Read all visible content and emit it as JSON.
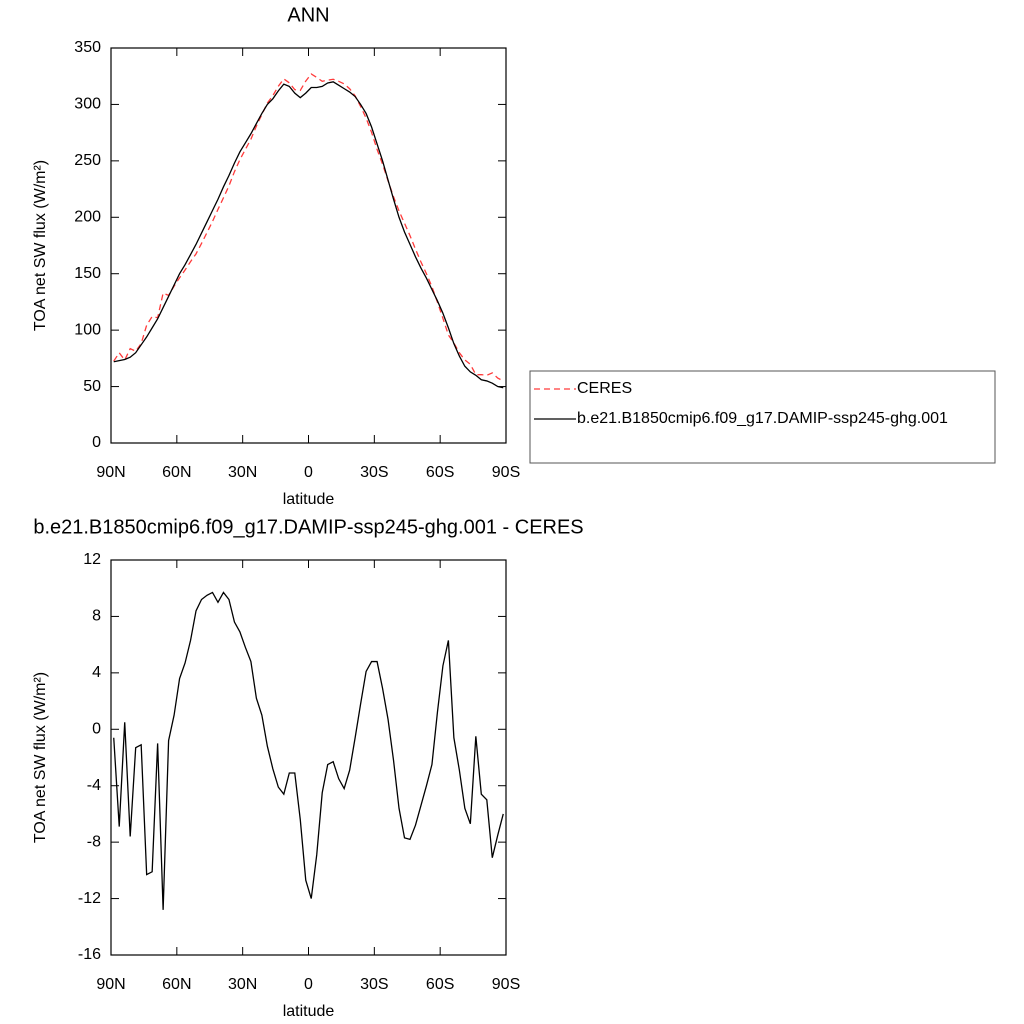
{
  "chart_data": [
    {
      "type": "line",
      "title": "ANN",
      "xlabel": "latitude",
      "ylabel": "TOA net SW flux (W/m²)",
      "xlim": [
        90,
        -90
      ],
      "xticks": [
        {
          "value": 90,
          "label": "90N"
        },
        {
          "value": 60,
          "label": "60N"
        },
        {
          "value": 30,
          "label": "30N"
        },
        0,
        {
          "value": -30,
          "label": "30S"
        },
        {
          "value": -60,
          "label": "60S"
        },
        {
          "value": -90,
          "label": "90S"
        }
      ],
      "ylim": [
        0,
        350
      ],
      "yticks": [
        0,
        50,
        100,
        150,
        200,
        250,
        300,
        350
      ],
      "legend": "right",
      "x": [
        88.75,
        86.25,
        83.75,
        81.25,
        78.75,
        76.25,
        73.75,
        71.25,
        68.75,
        66.25,
        63.75,
        61.25,
        58.75,
        56.25,
        53.75,
        51.25,
        48.75,
        46.25,
        43.75,
        41.25,
        38.75,
        36.25,
        33.75,
        31.25,
        28.75,
        26.25,
        23.75,
        21.25,
        18.75,
        16.25,
        13.75,
        11.25,
        8.75,
        6.25,
        3.75,
        1.25,
        -1.25,
        -3.75,
        -6.25,
        -8.75,
        -11.25,
        -13.75,
        -16.25,
        -18.75,
        -21.25,
        -23.75,
        -26.25,
        -28.75,
        -31.25,
        -33.75,
        -36.25,
        -38.75,
        -41.25,
        -43.75,
        -46.25,
        -48.75,
        -51.25,
        -53.75,
        -56.25,
        -58.75,
        -61.25,
        -63.75,
        -66.25,
        -68.75,
        -71.25,
        -73.75,
        -76.25,
        -78.75,
        -81.25,
        -83.75,
        -86.25,
        -88.75
      ],
      "series": [
        {
          "name": "CERES",
          "color": "#ff3b3b",
          "dashed": true,
          "values": [
            72.6,
            79.9,
            73.5,
            83.6,
            81.3,
            88.1,
            104.3,
            112.1,
            111,
            132.8,
            130.8,
            139,
            146.4,
            153.3,
            160.7,
            167.6,
            176.8,
            186.5,
            196.3,
            207,
            217.3,
            227.8,
            240.4,
            251.1,
            260.2,
            269.2,
            280.8,
            291,
            301.2,
            307.8,
            316.1,
            322.6,
            319.1,
            313.1,
            312.4,
            320.7,
            327,
            323.9,
            320.5,
            321.5,
            322.3,
            320.5,
            318.2,
            313.9,
            307.6,
            298.2,
            287.9,
            275.2,
            260.2,
            247.1,
            232.3,
            218.2,
            205.6,
            194.7,
            183.8,
            171.8,
            160.4,
            150,
            138.5,
            124.8,
            110.5,
            95.7,
            88.6,
            79.9,
            73.6,
            69.7,
            60.5,
            60.6,
            60,
            62.1,
            57.5,
            55
          ]
        },
        {
          "name": "b.e21.B1850cmip6.f09_g17.DAMIP-ssp245-ghg.001",
          "color": "#000000",
          "dashed": false,
          "values": [
            72,
            73,
            74,
            76,
            80,
            87,
            94,
            102,
            110,
            120,
            130,
            140,
            150,
            158,
            167,
            176,
            186,
            196,
            206,
            216,
            227,
            237,
            248,
            258,
            266,
            274,
            283,
            292,
            300,
            305,
            312,
            318,
            316,
            310,
            306,
            310,
            315,
            315,
            316,
            319,
            320,
            317,
            314,
            311,
            307,
            300,
            292,
            280,
            265,
            250,
            233,
            216,
            200,
            187,
            176,
            165,
            155,
            146,
            136,
            126,
            115,
            102,
            88,
            77,
            68,
            63,
            60,
            56,
            55,
            53,
            50,
            49
          ]
        }
      ]
    },
    {
      "type": "line",
      "title": "b.e21.B1850cmip6.f09_g17.DAMIP-ssp245-ghg.001 - CERES",
      "xlabel": "latitude",
      "ylabel": "TOA net SW flux (W/m²)",
      "xlim": [
        90,
        -90
      ],
      "xticks": [
        {
          "value": 90,
          "label": "90N"
        },
        {
          "value": 60,
          "label": "60N"
        },
        {
          "value": 30,
          "label": "30N"
        },
        0,
        {
          "value": -30,
          "label": "30S"
        },
        {
          "value": -60,
          "label": "60S"
        },
        {
          "value": -90,
          "label": "90S"
        }
      ],
      "ylim": [
        -16,
        12
      ],
      "yticks": [
        -16,
        -12,
        -8,
        -4,
        0,
        4,
        8,
        12
      ],
      "x": [
        88.75,
        86.25,
        83.75,
        81.25,
        78.75,
        76.25,
        73.75,
        71.25,
        68.75,
        66.25,
        63.75,
        61.25,
        58.75,
        56.25,
        53.75,
        51.25,
        48.75,
        46.25,
        43.75,
        41.25,
        38.75,
        36.25,
        33.75,
        31.25,
        28.75,
        26.25,
        23.75,
        21.25,
        18.75,
        16.25,
        13.75,
        11.25,
        8.75,
        6.25,
        3.75,
        1.25,
        -1.25,
        -3.75,
        -6.25,
        -8.75,
        -11.25,
        -13.75,
        -16.25,
        -18.75,
        -21.25,
        -23.75,
        -26.25,
        -28.75,
        -31.25,
        -33.75,
        -36.25,
        -38.75,
        -41.25,
        -43.75,
        -46.25,
        -48.75,
        -51.25,
        -53.75,
        -56.25,
        -58.75,
        -61.25,
        -63.75,
        -66.25,
        -68.75,
        -71.25,
        -73.75,
        -76.25,
        -78.75,
        -81.25,
        -83.75,
        -86.25,
        -88.75
      ],
      "series": [
        {
          "color": "#000000",
          "dashed": false,
          "values": [
            -0.6,
            -6.9,
            0.5,
            -7.6,
            -1.3,
            -1.1,
            -10.3,
            -10.1,
            -1.0,
            -12.8,
            -0.8,
            1,
            3.6,
            4.7,
            6.3,
            8.4,
            9.2,
            9.5,
            9.7,
            9,
            9.7,
            9.2,
            7.6,
            6.9,
            5.8,
            4.8,
            2.2,
            1,
            -1.2,
            -2.8,
            -4.1,
            -4.6,
            -3.1,
            -3.1,
            -6.4,
            -10.7,
            -12,
            -8.9,
            -4.5,
            -2.5,
            -2.3,
            -3.5,
            -4.2,
            -2.9,
            -0.6,
            1.8,
            4.1,
            4.8,
            4.8,
            2.9,
            0.7,
            -2.2,
            -5.6,
            -7.7,
            -7.8,
            -6.8,
            -5.4,
            -4,
            -2.5,
            1.2,
            4.5,
            6.3,
            -0.6,
            -2.9,
            -5.6,
            -6.7,
            -0.5,
            -4.6,
            -5,
            -9.1,
            -7.5,
            -6
          ]
        }
      ]
    }
  ]
}
